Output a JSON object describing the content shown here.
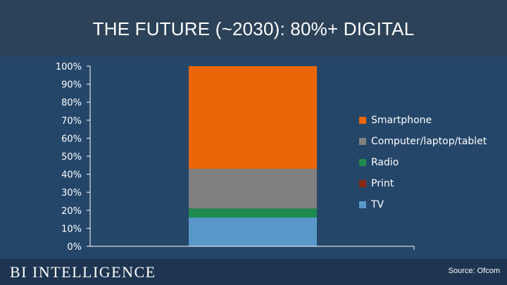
{
  "title": "THE FUTURE (~2030): 80%+ DIGITAL",
  "brand": "BI INTELLIGENCE",
  "source": "Source: Ofcom",
  "chart_data": {
    "type": "bar",
    "stacked": true,
    "categories": [
      ""
    ],
    "series": [
      {
        "name": "TV",
        "values": [
          16
        ],
        "color": "#5897c7"
      },
      {
        "name": "Print",
        "values": [
          0
        ],
        "color": "#8b2a14"
      },
      {
        "name": "Radio",
        "values": [
          5
        ],
        "color": "#1e8a4c"
      },
      {
        "name": "Computer/laptop/tablet",
        "values": [
          22
        ],
        "color": "#808080"
      },
      {
        "name": "Smartphone",
        "values": [
          57
        ],
        "color": "#ec6608"
      }
    ],
    "legend_order": [
      "Smartphone",
      "Computer/laptop/tablet",
      "Radio",
      "Print",
      "TV"
    ],
    "ylim": [
      0,
      100
    ],
    "yticks": [
      "0%",
      "10%",
      "20%",
      "30%",
      "40%",
      "50%",
      "60%",
      "70%",
      "80%",
      "90%",
      "100%"
    ],
    "legend_position": "right",
    "grid": false
  }
}
